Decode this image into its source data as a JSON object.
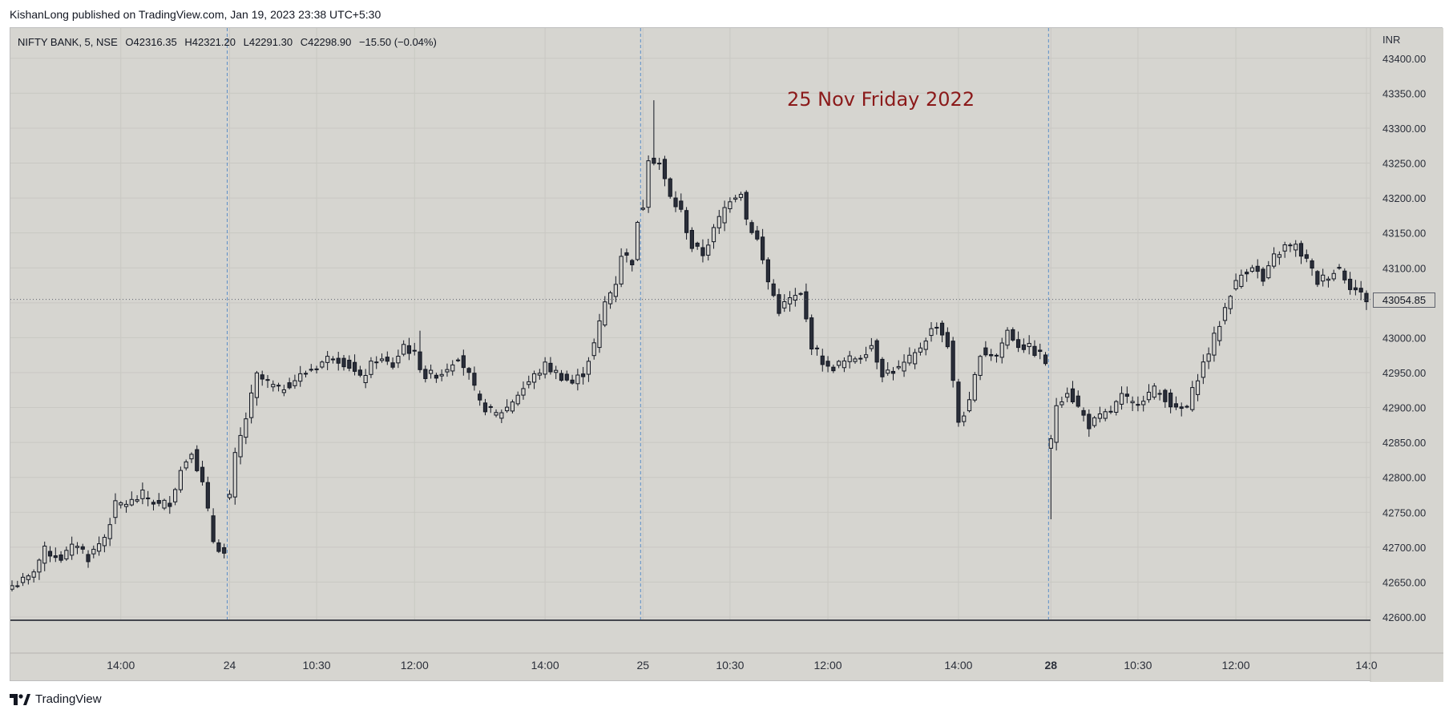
{
  "header": {
    "published_text": "KishanLong published on TradingView.com, Jan 19, 2023 23:38 UTC+5:30"
  },
  "legend": {
    "symbol": "NIFTY BANK, 5, NSE",
    "o_label": "O",
    "o_value": "42316.35",
    "h_label": "H",
    "h_value": "42321.20",
    "l_label": "L",
    "l_value": "42291.30",
    "c_label": "C",
    "c_value": "42298.90",
    "change": "−15.50 (−0.04%)"
  },
  "annotation": "25 Nov Friday 2022",
  "footer": {
    "brand": "TradingView"
  },
  "colors": {
    "background": "#d6d5d0",
    "candle_up_fill": "#d6d5d0",
    "candle_down_fill": "#2a2e39",
    "candle_outline": "#131722",
    "session_line": "#5b8ec9",
    "annotation": "#8b1a1a"
  },
  "chart_data": {
    "type": "candlestick",
    "currency": "INR",
    "ylim": [
      42600,
      43410
    ],
    "y_ticks": [
      42600,
      42650,
      42700,
      42750,
      42800,
      42850,
      42900,
      42950,
      43000,
      43050,
      43100,
      43150,
      43200,
      43250,
      43300,
      43350,
      43400
    ],
    "y_tick_labels": [
      "42600.00",
      "42650.00",
      "42700.00",
      "42750.00",
      "42800.00",
      "42850.00",
      "42900.00",
      "42950.00",
      "43000.00",
      "43050.00",
      "43100.00",
      "43150.00",
      "43200.00",
      "43250.00",
      "43300.00",
      "43350.00",
      "43400.00"
    ],
    "last_price": 43054.85,
    "last_price_label": "43054.85",
    "x_tick_labels": [
      {
        "label": "14:00",
        "bar": 20,
        "bold": false
      },
      {
        "label": "24",
        "bar": 40,
        "bold": false
      },
      {
        "label": "10:30",
        "bar": 56,
        "bold": false
      },
      {
        "label": "12:00",
        "bar": 74,
        "bold": false
      },
      {
        "label": "14:00",
        "bar": 98,
        "bold": false
      },
      {
        "label": "25",
        "bar": 116,
        "bold": false
      },
      {
        "label": "10:30",
        "bar": 132,
        "bold": false
      },
      {
        "label": "12:00",
        "bar": 150,
        "bold": false
      },
      {
        "label": "14:00",
        "bar": 174,
        "bold": false
      },
      {
        "label": "28",
        "bar": 191,
        "bold": true
      },
      {
        "label": "10:30",
        "bar": 207,
        "bold": false
      },
      {
        "label": "12:00",
        "bar": 225,
        "bold": false
      },
      {
        "label": "14:0",
        "bar": 249,
        "bold": false
      }
    ],
    "session_breaks": [
      40,
      116,
      191
    ],
    "anchors": [
      [
        0,
        42645
      ],
      [
        3,
        42655
      ],
      [
        6,
        42695
      ],
      [
        9,
        42685
      ],
      [
        12,
        42705
      ],
      [
        14,
        42685
      ],
      [
        17,
        42715
      ],
      [
        19,
        42760
      ],
      [
        22,
        42765
      ],
      [
        24,
        42775
      ],
      [
        27,
        42760
      ],
      [
        29,
        42765
      ],
      [
        31,
        42810
      ],
      [
        33,
        42840
      ],
      [
        35,
        42790
      ],
      [
        37,
        42710
      ],
      [
        39,
        42690
      ],
      [
        40,
        42770
      ],
      [
        41,
        42830
      ],
      [
        43,
        42885
      ],
      [
        45,
        42945
      ],
      [
        49,
        42925
      ],
      [
        52,
        42940
      ],
      [
        56,
        42960
      ],
      [
        59,
        42975
      ],
      [
        62,
        42960
      ],
      [
        64,
        42940
      ],
      [
        67,
        42970
      ],
      [
        70,
        42960
      ],
      [
        72,
        42990
      ],
      [
        74,
        42975
      ],
      [
        76,
        42945
      ],
      [
        79,
        42950
      ],
      [
        82,
        42975
      ],
      [
        84,
        42945
      ],
      [
        86,
        42905
      ],
      [
        89,
        42890
      ],
      [
        91,
        42900
      ],
      [
        93,
        42920
      ],
      [
        96,
        42945
      ],
      [
        98,
        42960
      ],
      [
        100,
        42950
      ],
      [
        103,
        42935
      ],
      [
        105,
        42950
      ],
      [
        107,
        42990
      ],
      [
        109,
        43050
      ],
      [
        111,
        43080
      ],
      [
        112,
        43120
      ],
      [
        114,
        43110
      ],
      [
        115,
        43160
      ],
      [
        116,
        43190
      ],
      [
        117,
        43260
      ],
      [
        119,
        43250
      ],
      [
        121,
        43200
      ],
      [
        123,
        43180
      ],
      [
        125,
        43130
      ],
      [
        127,
        43120
      ],
      [
        130,
        43170
      ],
      [
        132,
        43200
      ],
      [
        134,
        43210
      ],
      [
        135,
        43170
      ],
      [
        137,
        43140
      ],
      [
        139,
        43080
      ],
      [
        141,
        43040
      ],
      [
        143,
        43055
      ],
      [
        145,
        43060
      ],
      [
        147,
        42990
      ],
      [
        150,
        42955
      ],
      [
        153,
        42965
      ],
      [
        156,
        42975
      ],
      [
        158,
        42990
      ],
      [
        160,
        42950
      ],
      [
        163,
        42955
      ],
      [
        166,
        42975
      ],
      [
        168,
        43000
      ],
      [
        170,
        43020
      ],
      [
        172,
        42990
      ],
      [
        174,
        42880
      ],
      [
        176,
        42905
      ],
      [
        178,
        42980
      ],
      [
        181,
        42975
      ],
      [
        183,
        43010
      ],
      [
        185,
        42990
      ],
      [
        187,
        42985
      ],
      [
        189,
        42975
      ],
      [
        190,
        42965
      ],
      [
        191,
        42850
      ],
      [
        192,
        42905
      ],
      [
        194,
        42925
      ],
      [
        196,
        42900
      ],
      [
        198,
        42875
      ],
      [
        200,
        42885
      ],
      [
        202,
        42895
      ],
      [
        204,
        42915
      ],
      [
        206,
        42905
      ],
      [
        208,
        42915
      ],
      [
        210,
        42925
      ],
      [
        212,
        42915
      ],
      [
        214,
        42895
      ],
      [
        216,
        42900
      ],
      [
        218,
        42945
      ],
      [
        220,
        42980
      ],
      [
        222,
        43020
      ],
      [
        224,
        43065
      ],
      [
        226,
        43090
      ],
      [
        228,
        43105
      ],
      [
        230,
        43080
      ],
      [
        232,
        43115
      ],
      [
        234,
        43130
      ],
      [
        236,
        43130
      ],
      [
        238,
        43110
      ],
      [
        240,
        43080
      ],
      [
        242,
        43090
      ],
      [
        244,
        43100
      ],
      [
        246,
        43075
      ],
      [
        249,
        43055
      ]
    ]
  }
}
